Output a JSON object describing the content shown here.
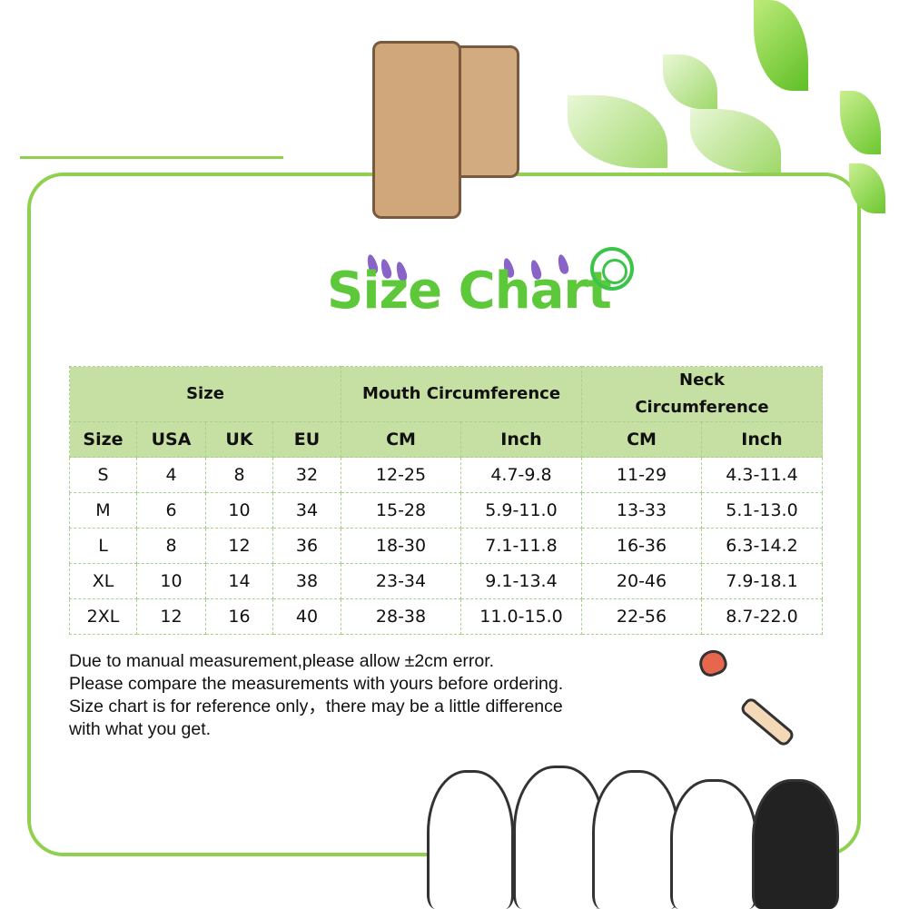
{
  "title": "Size Chart",
  "table": {
    "group_headers": [
      "Size",
      "Mouth Circumference",
      "Neck Circumference"
    ],
    "column_headers": [
      "Size",
      "USA",
      "UK",
      "EU",
      "CM",
      "Inch",
      "CM",
      "Inch"
    ],
    "rows": [
      [
        "S",
        "4",
        "8",
        "32",
        "12-25",
        "4.7-9.8",
        "11-29",
        "4.3-11.4"
      ],
      [
        "M",
        "6",
        "10",
        "34",
        "15-28",
        "5.9-11.0",
        "13-33",
        "5.1-13.0"
      ],
      [
        "L",
        "8",
        "12",
        "36",
        "18-30",
        "7.1-11.8",
        "16-36",
        "6.3-14.2"
      ],
      [
        "XL",
        "10",
        "14",
        "38",
        "23-34",
        "9.1-13.4",
        "20-46",
        "7.9-18.1"
      ],
      [
        "2XL",
        "12",
        "16",
        "40",
        "28-38",
        "11.0-15.0",
        "22-56",
        "8.7-22.0"
      ]
    ]
  },
  "notes": [
    "Due to manual measurement,please allow ±2cm error.",
    "Please compare the measurements with yours before ordering.",
    "Size chart is for reference only，there may be a little difference",
    "with what you get."
  ],
  "colors": {
    "accent_green": "#5ec83b",
    "header_fill": "#c6dfa2",
    "frame": "#8fd14f"
  },
  "icons": [
    "clip-icon",
    "leaf-icon",
    "spiral-icon",
    "bone-icon",
    "heart-icon",
    "cats-illustration"
  ]
}
